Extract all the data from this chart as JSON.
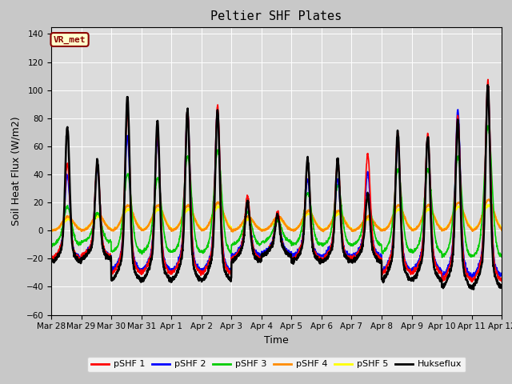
{
  "title": "Peltier SHF Plates",
  "xlabel": "Time",
  "ylabel": "Soil Heat Flux (W/m2)",
  "ylim": [
    -60,
    145
  ],
  "yticks": [
    -60,
    -40,
    -20,
    0,
    20,
    40,
    60,
    80,
    100,
    120,
    140
  ],
  "x_labels": [
    "Mar 28",
    "Mar 29",
    "Mar 30",
    "Mar 31",
    "Apr 1",
    "Apr 2",
    "Apr 3",
    "Apr 4",
    "Apr 5",
    "Apr 6",
    "Apr 7",
    "Apr 8",
    "Apr 9",
    "Apr 10",
    "Apr 11",
    "Apr 12"
  ],
  "annotation_text": "VR_met",
  "annotation_color": "#8B0000",
  "annotation_bg": "#FFFFCC",
  "bg_color": "#DCDCDC",
  "fig_bg_color": "#C8C8C8",
  "series_colors": {
    "pSHF 1": "#FF0000",
    "pSHF 2": "#0000FF",
    "pSHF 3": "#00CC00",
    "pSHF 4": "#FF8C00",
    "pSHF 5": "#FFFF00",
    "Hukseflux": "#000000"
  },
  "series_lw": {
    "pSHF 1": 1.2,
    "pSHF 2": 1.2,
    "pSHF 3": 1.2,
    "pSHF 4": 1.5,
    "pSHF 5": 1.5,
    "Hukseflux": 1.8
  },
  "n_days": 15,
  "pts_per_day": 144,
  "peak_amps_huk": [
    83,
    58,
    110,
    93,
    100,
    100,
    30,
    18,
    60,
    60,
    35,
    85,
    82,
    95,
    120
  ],
  "peak_amps_p1": [
    55,
    55,
    95,
    80,
    97,
    100,
    32,
    20,
    55,
    58,
    62,
    80,
    80,
    95,
    120
  ],
  "peak_amps_p2": [
    47,
    52,
    77,
    76,
    95,
    97,
    25,
    17,
    43,
    43,
    48,
    73,
    76,
    98,
    115
  ],
  "peak_amps_p3": [
    20,
    15,
    45,
    42,
    58,
    62,
    16,
    10,
    30,
    35,
    25,
    48,
    48,
    58,
    80
  ],
  "peak_amps_p4": [
    10,
    12,
    18,
    18,
    18,
    20,
    10,
    10,
    14,
    14,
    10,
    18,
    18,
    20,
    22
  ],
  "peak_amps_p5": [
    8,
    10,
    15,
    15,
    15,
    17,
    8,
    8,
    12,
    12,
    8,
    15,
    15,
    17,
    18
  ],
  "neg_amps_huk": [
    22,
    20,
    35,
    35,
    35,
    35,
    22,
    18,
    22,
    22,
    22,
    35,
    35,
    40,
    40
  ],
  "neg_amps_p1": [
    20,
    18,
    30,
    30,
    30,
    30,
    20,
    18,
    20,
    20,
    20,
    30,
    30,
    35,
    35
  ],
  "neg_amps_p2": [
    20,
    18,
    28,
    28,
    28,
    28,
    18,
    16,
    18,
    18,
    18,
    28,
    28,
    32,
    32
  ],
  "neg_amps_p3": [
    10,
    8,
    15,
    15,
    15,
    15,
    10,
    8,
    10,
    10,
    10,
    15,
    15,
    18,
    18
  ],
  "neg_amps_p4": [
    0,
    0,
    0,
    0,
    0,
    0,
    0,
    0,
    0,
    0,
    0,
    0,
    0,
    0,
    0
  ],
  "neg_amps_p5": [
    0,
    0,
    0,
    0,
    0,
    0,
    0,
    0,
    0,
    0,
    0,
    0,
    0,
    0,
    0
  ]
}
